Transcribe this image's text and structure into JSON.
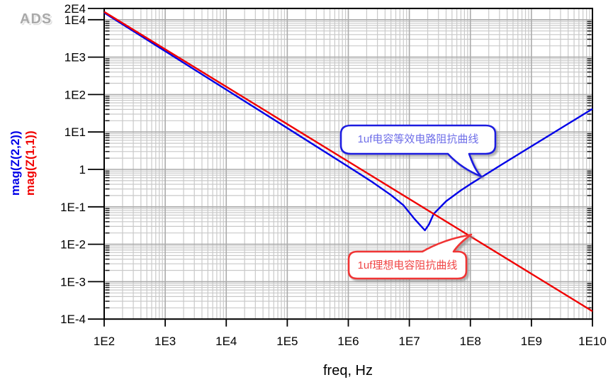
{
  "app": {
    "logo": "ADS"
  },
  "chart_data": {
    "type": "line",
    "title": "",
    "xlabel": "freq, Hz",
    "grid": true,
    "x_axis": {
      "scale": "log",
      "min": 100,
      "max": 10000000000,
      "ticks": [
        {
          "label": "1E2",
          "value": 100
        },
        {
          "label": "1E3",
          "value": 1000
        },
        {
          "label": "1E4",
          "value": 10000
        },
        {
          "label": "1E5",
          "value": 100000
        },
        {
          "label": "1E6",
          "value": 1000000
        },
        {
          "label": "1E7",
          "value": 10000000
        },
        {
          "label": "1E8",
          "value": 100000000
        },
        {
          "label": "1E9",
          "value": 1000000000
        },
        {
          "label": "1E10",
          "value": 10000000000
        }
      ]
    },
    "y_axis": {
      "scale": "log",
      "min": 0.0001,
      "max": 20000,
      "ticks": [
        {
          "label": "2E4",
          "value": 20000
        },
        {
          "label": "1E4",
          "value": 10000
        },
        {
          "label": "1E3",
          "value": 1000
        },
        {
          "label": "1E2",
          "value": 100
        },
        {
          "label": "1E1",
          "value": 10
        },
        {
          "label": "1",
          "value": 1
        },
        {
          "label": "1E-1",
          "value": 0.1
        },
        {
          "label": "1E-2",
          "value": 0.01
        },
        {
          "label": "1E-3",
          "value": 0.001
        },
        {
          "label": "1E-4",
          "value": 0.0001
        }
      ]
    },
    "series": [
      {
        "name": "mag(Z(2,2))",
        "color": "#0000e8",
        "points": [
          [
            100,
            15300
          ],
          [
            1000,
            1440
          ],
          [
            10000,
            135
          ],
          [
            100000,
            12.7
          ],
          [
            1000000,
            1.186
          ],
          [
            2500000,
            0.454
          ],
          [
            5000000,
            0.206
          ],
          [
            8000000,
            0.11
          ],
          [
            12000000,
            0.0487
          ],
          [
            16000000,
            0.029
          ],
          [
            18000000,
            0.0235
          ],
          [
            21000000,
            0.034
          ],
          [
            25000000,
            0.0646
          ],
          [
            40000000,
            0.141
          ],
          [
            70000000,
            0.276
          ],
          [
            100000000,
            0.406
          ],
          [
            316000000,
            1.307
          ],
          [
            1000000000,
            4.15
          ],
          [
            3160000000,
            13.1
          ],
          [
            10000000000,
            41.5
          ]
        ]
      },
      {
        "name": "mag(Z(1,1))",
        "color": "#f00000",
        "points": [
          [
            100,
            16200
          ],
          [
            10000000000,
            0.000162
          ]
        ]
      }
    ],
    "annotations": [
      {
        "text": "1uf电容等效电路阻抗曲线",
        "border_color": "#1f1fe0",
        "text_color": "#6e6ee8",
        "attached_series": "mag(Z(2,2))"
      },
      {
        "text": "1uf理想电容阻抗曲线",
        "border_color": "#f03434",
        "text_color": "#f04545",
        "attached_series": "mag(Z(1,1))"
      }
    ]
  }
}
